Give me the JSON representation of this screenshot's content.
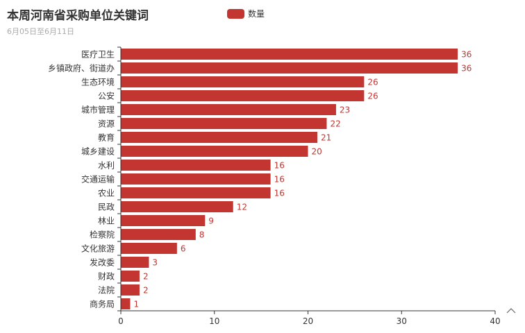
{
  "title": "本周河南省采购单位关键词",
  "subtitle": "6月05日至6月11日",
  "colors": {
    "bar": "#c23531",
    "axis": "#333333",
    "tick_text": "#333333",
    "label_text": "#c23531"
  },
  "toolbox_icon": "chevron-up-icon",
  "chart_data": {
    "type": "bar",
    "orientation": "horizontal",
    "title": "本周河南省采购单位关键词",
    "subtitle": "6月05日至6月11日",
    "legend_position": "top-center",
    "grid": false,
    "xlim": [
      0,
      40
    ],
    "x_ticks": [
      0,
      10,
      20,
      30,
      40
    ],
    "categories": [
      "医疗卫生",
      "乡镇政府、街道办",
      "生态环境",
      "公安",
      "城市管理",
      "资源",
      "教育",
      "城乡建设",
      "水利",
      "交通运输",
      "农业",
      "民政",
      "林业",
      "检察院",
      "文化旅游",
      "发改委",
      "财政",
      "法院",
      "商务局"
    ],
    "series": [
      {
        "name": "数量",
        "values": [
          36,
          36,
          26,
          26,
          23,
          22,
          21,
          20,
          16,
          16,
          16,
          12,
          9,
          8,
          6,
          3,
          2,
          2,
          1
        ]
      }
    ]
  }
}
